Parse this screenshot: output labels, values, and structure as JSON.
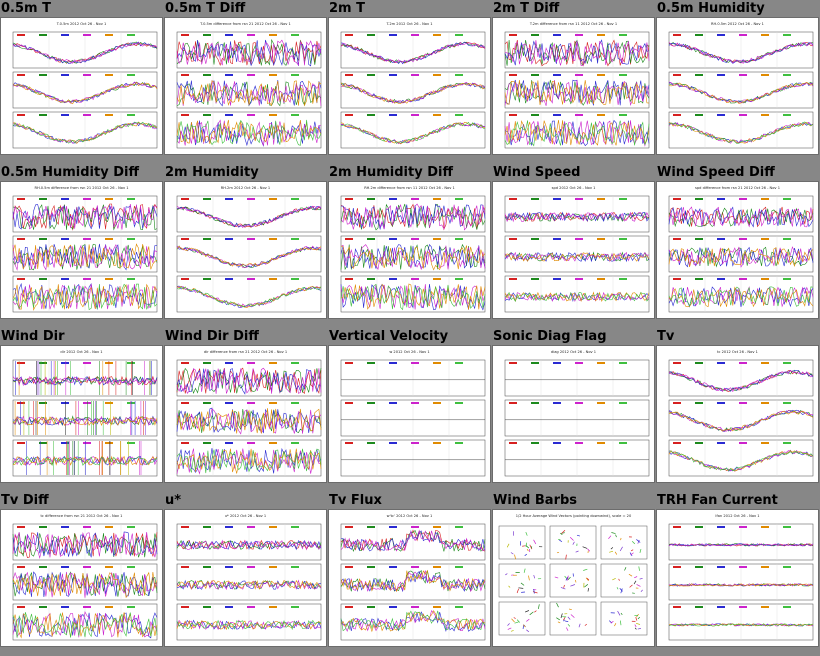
{
  "page": {
    "background": "#878787"
  },
  "panels": [
    {
      "title": "0.5m T",
      "style": "temp",
      "header": "T.0.5m 2012 Oct 26 - Nov 1"
    },
    {
      "title": "0.5m T Diff",
      "style": "diff",
      "header": "T.0.5m difference from rsn 21 2012 Oct 26 - Nov 1"
    },
    {
      "title": "2m T",
      "style": "temp",
      "header": "T.2m 2012 Oct 26 - Nov 1"
    },
    {
      "title": "2m T Diff",
      "style": "diff",
      "header": "T.2m difference from rsn 11 2012 Oct 26 - Nov 1"
    },
    {
      "title": "0.5m Humidity",
      "style": "rh",
      "header": "RH.0.5m 2012 Oct 26 - Nov 1"
    },
    {
      "title": "0.5m Humidity Diff",
      "style": "diff",
      "header": "RH.0.5m difference from rsn 21 2012 Oct 26 - Nov 1"
    },
    {
      "title": "2m Humidity",
      "style": "rh",
      "header": "RH.2m 2012 Oct 26 - Nov 1"
    },
    {
      "title": "2m Humidity Diff",
      "style": "diff",
      "header": "RH.2m difference from rsn 11 2012 Oct 26 - Nov 1"
    },
    {
      "title": "Wind Speed",
      "style": "flat",
      "header": "spd 2012 Oct 26 - Nov 1"
    },
    {
      "title": "Wind Speed Diff",
      "style": "flatdiff",
      "header": "spd difference from rsn 21 2012 Oct 26 - Nov 1"
    },
    {
      "title": "Wind Dir",
      "style": "dir",
      "header": "dir 2012 Oct 26 - Nov 1"
    },
    {
      "title": "Wind Dir Diff",
      "style": "diff",
      "header": "dir difference from rsn 21 2012 Oct 26 - Nov 1"
    },
    {
      "title": "Vertical Velocity",
      "style": "empty",
      "header": "w 2012 Oct 26 - Nov 1"
    },
    {
      "title": "Sonic Diag Flag",
      "style": "empty",
      "header": "diag 2012 Oct 26 - Nov 1"
    },
    {
      "title": "Tv",
      "style": "temp",
      "header": "tc 2012 Oct 26 - Nov 1"
    },
    {
      "title": "Tv Diff",
      "style": "diff",
      "header": "tc difference from rsn 21 2012 Oct 26 - Nov 1"
    },
    {
      "title": "u*",
      "style": "flat",
      "header": "u* 2012 Oct 26 - Nov 1"
    },
    {
      "title": "Tv Flux",
      "style": "flux",
      "header": "w'tc' 2012 Oct 26 - Nov 1"
    },
    {
      "title": "Wind Barbs",
      "style": "barbs",
      "header": "1/2 Hour Average Wind Vectors (pointing downwind), scale = 20"
    },
    {
      "title": "TRH Fan Current",
      "style": "fan",
      "header": "Ifan 2012 Oct 26 - Nov 1"
    }
  ],
  "series_colors": [
    "#d62020",
    "#1d8a1d",
    "#2a2ad2",
    "#cc22cc",
    "#e08a00",
    "#3fbf3f",
    "#7a3ad0",
    "#b8b800",
    "#222222"
  ]
}
